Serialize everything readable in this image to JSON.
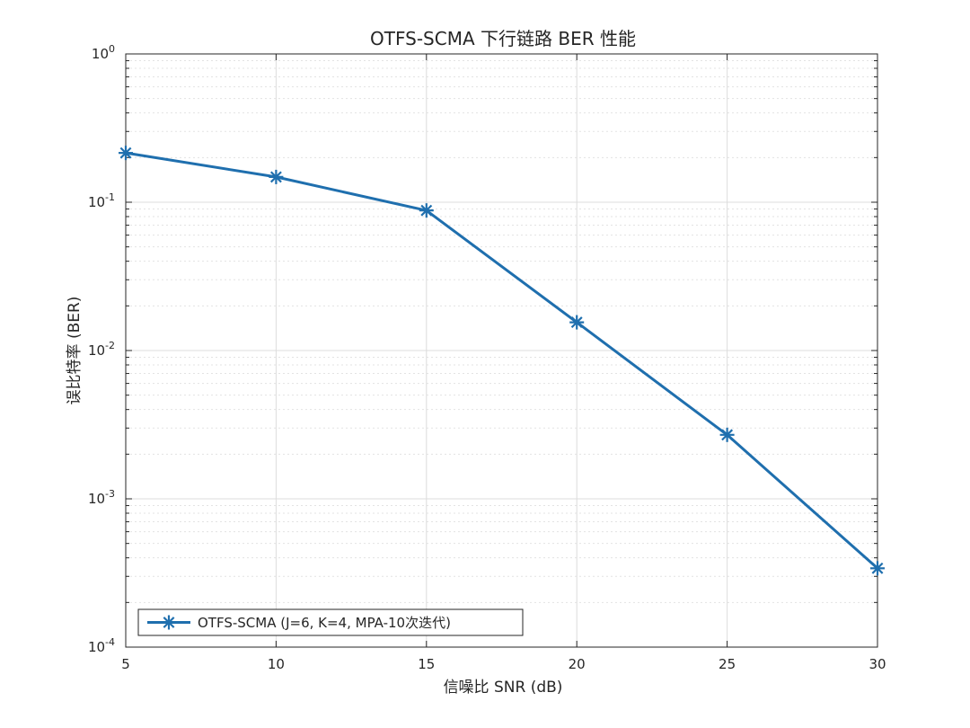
{
  "chart_data": {
    "type": "line",
    "title": "OTFS-SCMA 下行链路 BER 性能",
    "xlabel": "信噪比 SNR (dB)",
    "ylabel": "误比特率 (BER)",
    "xlim": [
      5,
      30
    ],
    "ylim": [
      0.0001,
      1
    ],
    "yscale": "log",
    "grid": true,
    "minor_grid": true,
    "legend_position": "bottom-left",
    "x_ticks": [
      5,
      10,
      15,
      20,
      25,
      30
    ],
    "y_ticks": [
      {
        "value": 1,
        "base": "10",
        "exp": "0"
      },
      {
        "value": 0.1,
        "base": "10",
        "exp": "-1"
      },
      {
        "value": 0.01,
        "base": "10",
        "exp": "-2"
      },
      {
        "value": 0.001,
        "base": "10",
        "exp": "-3"
      },
      {
        "value": 0.0001,
        "base": "10",
        "exp": "-4"
      }
    ],
    "series": [
      {
        "name": "OTFS-SCMA (J=6, K=4, MPA-10次迭代)",
        "color": "#1f6fae",
        "marker": "asterisk",
        "x": [
          5,
          10,
          15,
          20,
          25,
          30
        ],
        "y": [
          0.215,
          0.148,
          0.088,
          0.0155,
          0.0027,
          0.00034
        ]
      }
    ]
  }
}
